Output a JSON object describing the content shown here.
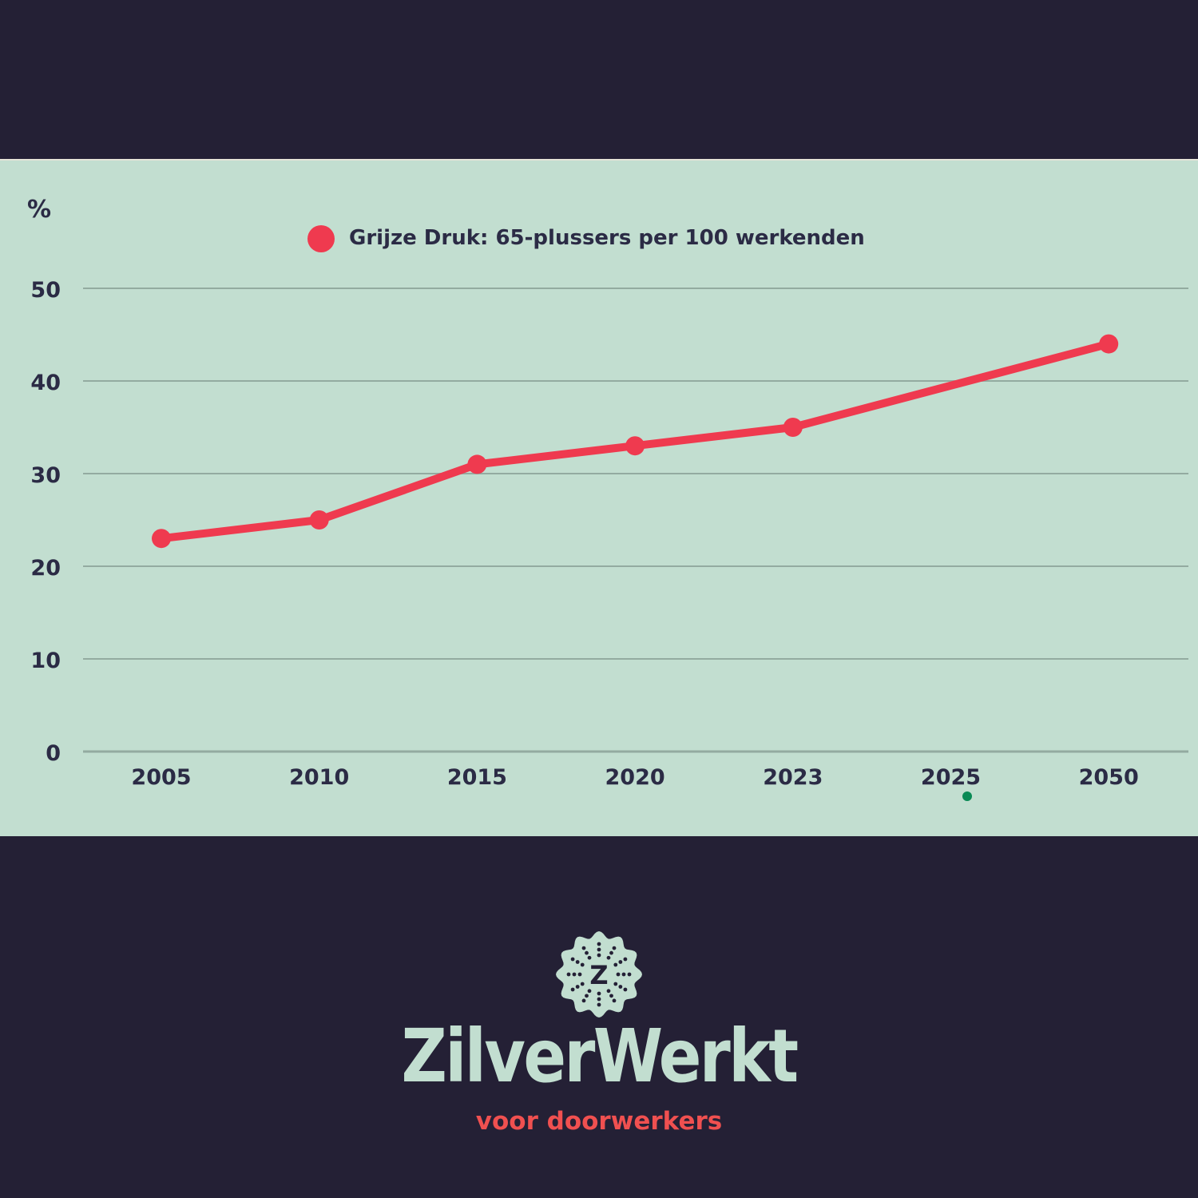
{
  "chart_data": {
    "type": "line",
    "title": "",
    "ylabel": "%",
    "xlabel": "",
    "categories": [
      "2005",
      "2010",
      "2015",
      "2020",
      "2023",
      "2025",
      "2050"
    ],
    "series": [
      {
        "name": "Grijze Druk: 65-plussers per 100 werkenden",
        "color": "#ef3a4f",
        "values": [
          23,
          25,
          31,
          33,
          35,
          null,
          44
        ]
      }
    ],
    "yticks": [
      0,
      10,
      20,
      30,
      40,
      50
    ],
    "ylim": [
      0,
      50
    ],
    "grid": true,
    "legend_position": "top"
  },
  "chart": {
    "unit_label": "%",
    "legend_label": "Grijze Druk: 65-plussers per 100 werkenden",
    "legend_color": "#ef3a4f",
    "marker_note_color": "#0a8a55"
  },
  "colors": {
    "background": "#242035",
    "panel": "#c2ded0",
    "gridline": "#93aba0",
    "text": "#2b2b45",
    "accent": "#ef3a4f",
    "logo_mint": "#c2ded0",
    "logo_red": "#f05050"
  },
  "logo": {
    "badge_letter": "Z",
    "name": "ZilverWerkt",
    "tagline": "voor doorwerkers"
  }
}
